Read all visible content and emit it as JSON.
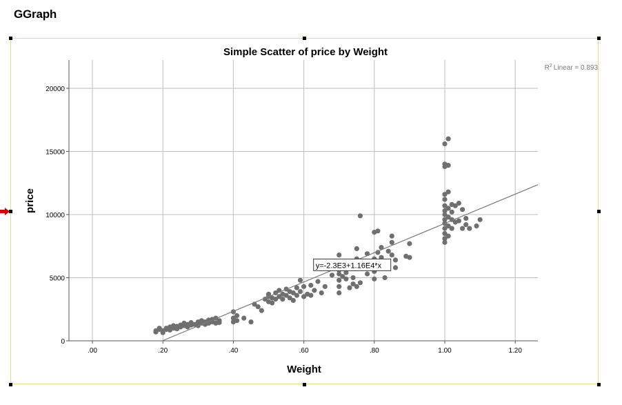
{
  "app": {
    "title": "GGraph"
  },
  "colors": {
    "frame": "#e8d98a",
    "marker": "#cc0000",
    "points": "#6f6f6f",
    "fit_line": "#7a7a7a",
    "grid": "#bdbdbd"
  },
  "icons": {
    "frame_marker": "red-arrow-marker-icon"
  },
  "chart_data": {
    "type": "scatter",
    "title": "Simple Scatter of price by Weight",
    "xlabel": "Weight",
    "ylabel": "price",
    "xlim": [
      -0.05,
      1.26
    ],
    "ylim": [
      0,
      22000
    ],
    "xticks": [
      0.0,
      0.2,
      0.4,
      0.6,
      0.8,
      1.0,
      1.2
    ],
    "xtick_labels": [
      ".00",
      ".20",
      ".40",
      ".60",
      ".80",
      "1.00",
      "1.20"
    ],
    "yticks": [
      0,
      5000,
      10000,
      15000,
      20000
    ],
    "ytick_labels": [
      "0",
      "5000",
      "10000",
      "15000",
      "20000"
    ],
    "grid": true,
    "r2_label": "Linear = 0.893",
    "r2_prefix": "R",
    "r2_sup": "2",
    "fit": {
      "label": "y=-2.3E3+1.16E4*x",
      "intercept": -2300,
      "slope": 11600,
      "label_at": [
        0.7,
        6100
      ]
    },
    "points": [
      [
        0.18,
        700
      ],
      [
        0.18,
        800
      ],
      [
        0.19,
        900
      ],
      [
        0.19,
        1000
      ],
      [
        0.2,
        650
      ],
      [
        0.2,
        800
      ],
      [
        0.21,
        900
      ],
      [
        0.21,
        1000
      ],
      [
        0.22,
        850
      ],
      [
        0.22,
        1100
      ],
      [
        0.23,
        1000
      ],
      [
        0.23,
        1200
      ],
      [
        0.24,
        950
      ],
      [
        0.24,
        1150
      ],
      [
        0.25,
        1100
      ],
      [
        0.25,
        1250
      ],
      [
        0.26,
        1200
      ],
      [
        0.26,
        1400
      ],
      [
        0.27,
        1300
      ],
      [
        0.27,
        1100
      ],
      [
        0.28,
        1250
      ],
      [
        0.28,
        1450
      ],
      [
        0.29,
        1300
      ],
      [
        0.3,
        1200
      ],
      [
        0.3,
        1500
      ],
      [
        0.31,
        1400
      ],
      [
        0.31,
        1600
      ],
      [
        0.32,
        1300
      ],
      [
        0.32,
        1500
      ],
      [
        0.33,
        1400
      ],
      [
        0.33,
        1650
      ],
      [
        0.34,
        1500
      ],
      [
        0.34,
        1700
      ],
      [
        0.35,
        1400
      ],
      [
        0.35,
        1800
      ],
      [
        0.36,
        1600
      ],
      [
        0.36,
        1450
      ],
      [
        0.4,
        1500
      ],
      [
        0.4,
        1800
      ],
      [
        0.4,
        2300
      ],
      [
        0.41,
        1600
      ],
      [
        0.41,
        2000
      ],
      [
        0.43,
        1800
      ],
      [
        0.45,
        1500
      ],
      [
        0.46,
        2900
      ],
      [
        0.47,
        2700
      ],
      [
        0.48,
        2400
      ],
      [
        0.49,
        3300
      ],
      [
        0.5,
        3100
      ],
      [
        0.5,
        3500
      ],
      [
        0.5,
        3700
      ],
      [
        0.51,
        3000
      ],
      [
        0.51,
        3400
      ],
      [
        0.52,
        3300
      ],
      [
        0.52,
        3800
      ],
      [
        0.53,
        3500
      ],
      [
        0.53,
        4000
      ],
      [
        0.54,
        3700
      ],
      [
        0.54,
        3300
      ],
      [
        0.55,
        3600
      ],
      [
        0.55,
        4100
      ],
      [
        0.56,
        3900
      ],
      [
        0.56,
        3400
      ],
      [
        0.57,
        3200
      ],
      [
        0.57,
        3800
      ],
      [
        0.58,
        3600
      ],
      [
        0.58,
        4200
      ],
      [
        0.59,
        3900
      ],
      [
        0.59,
        4800
      ],
      [
        0.6,
        3500
      ],
      [
        0.6,
        4300
      ],
      [
        0.61,
        3700
      ],
      [
        0.62,
        3600
      ],
      [
        0.62,
        4400
      ],
      [
        0.63,
        4000
      ],
      [
        0.64,
        4700
      ],
      [
        0.65,
        3800
      ],
      [
        0.66,
        4300
      ],
      [
        0.67,
        5700
      ],
      [
        0.68,
        5200
      ],
      [
        0.69,
        5800
      ],
      [
        0.7,
        4800
      ],
      [
        0.7,
        5300
      ],
      [
        0.7,
        5600
      ],
      [
        0.7,
        6000
      ],
      [
        0.7,
        6800
      ],
      [
        0.7,
        3800
      ],
      [
        0.7,
        4300
      ],
      [
        0.71,
        5100
      ],
      [
        0.71,
        5700
      ],
      [
        0.72,
        4900
      ],
      [
        0.72,
        5400
      ],
      [
        0.72,
        6200
      ],
      [
        0.73,
        4200
      ],
      [
        0.73,
        5800
      ],
      [
        0.74,
        4500
      ],
      [
        0.74,
        5000
      ],
      [
        0.75,
        4300
      ],
      [
        0.75,
        6500
      ],
      [
        0.75,
        7300
      ],
      [
        0.76,
        4600
      ],
      [
        0.76,
        9900
      ],
      [
        0.77,
        6200
      ],
      [
        0.78,
        6900
      ],
      [
        0.78,
        5300
      ],
      [
        0.8,
        4900
      ],
      [
        0.8,
        5500
      ],
      [
        0.8,
        6500
      ],
      [
        0.8,
        8600
      ],
      [
        0.81,
        7000
      ],
      [
        0.81,
        8700
      ],
      [
        0.82,
        5900
      ],
      [
        0.82,
        7400
      ],
      [
        0.82,
        6600
      ],
      [
        0.83,
        5000
      ],
      [
        0.84,
        7100
      ],
      [
        0.85,
        6800
      ],
      [
        0.85,
        7800
      ],
      [
        0.85,
        8300
      ],
      [
        0.86,
        5800
      ],
      [
        0.86,
        6400
      ],
      [
        0.89,
        6700
      ],
      [
        0.9,
        6600
      ],
      [
        0.9,
        7700
      ],
      [
        1.0,
        7800
      ],
      [
        1.0,
        8100
      ],
      [
        1.0,
        8500
      ],
      [
        1.0,
        8900
      ],
      [
        1.0,
        9300
      ],
      [
        1.0,
        9600
      ],
      [
        1.0,
        10000
      ],
      [
        1.0,
        10300
      ],
      [
        1.0,
        10700
      ],
      [
        1.0,
        11200
      ],
      [
        1.0,
        11600
      ],
      [
        1.0,
        13800
      ],
      [
        1.0,
        14000
      ],
      [
        1.0,
        15600
      ],
      [
        1.01,
        8300
      ],
      [
        1.01,
        9100
      ],
      [
        1.01,
        9800
      ],
      [
        1.01,
        10500
      ],
      [
        1.01,
        11800
      ],
      [
        1.01,
        13900
      ],
      [
        1.01,
        16000
      ],
      [
        1.02,
        8900
      ],
      [
        1.02,
        9600
      ],
      [
        1.02,
        10200
      ],
      [
        1.02,
        10800
      ],
      [
        1.03,
        9400
      ],
      [
        1.03,
        10700
      ],
      [
        1.04,
        10900
      ],
      [
        1.04,
        9500
      ],
      [
        1.05,
        10400
      ],
      [
        1.05,
        8900
      ],
      [
        1.06,
        9200
      ],
      [
        1.06,
        9700
      ],
      [
        1.07,
        8900
      ],
      [
        1.09,
        9100
      ],
      [
        1.1,
        9600
      ]
    ]
  }
}
